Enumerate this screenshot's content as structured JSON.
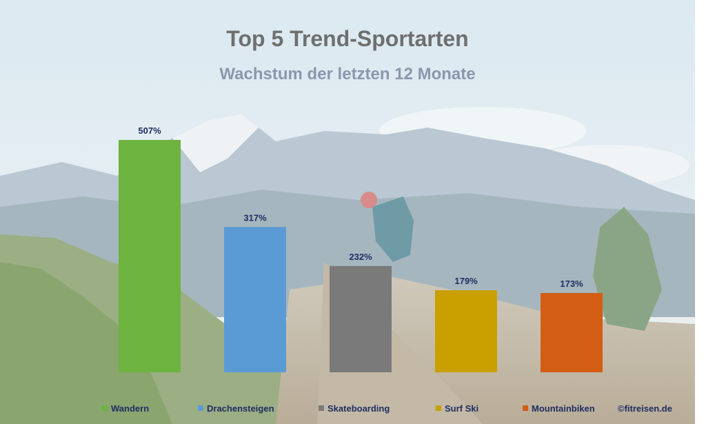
{
  "chart_data": {
    "type": "bar",
    "title": "Top 5 Trend-Sportarten",
    "subtitle": "Wachstum der letzten 12 Monate",
    "categories": [
      "Wandern",
      "Drachensteigen",
      "Skateboarding",
      "Surf Ski",
      "Mountainbiken"
    ],
    "values": [
      507,
      317,
      232,
      179,
      173
    ],
    "value_labels": [
      "507%",
      "317%",
      "232%",
      "179%",
      "173%"
    ],
    "unit": "%",
    "colors": [
      "#6db33f",
      "#5b9bd5",
      "#7a7a7a",
      "#c9a000",
      "#d35d14"
    ],
    "ylim": [
      0,
      507
    ],
    "grid": false,
    "legend": "bottom",
    "xlabel": "",
    "ylabel": ""
  },
  "credit": "©fitreisen.de"
}
